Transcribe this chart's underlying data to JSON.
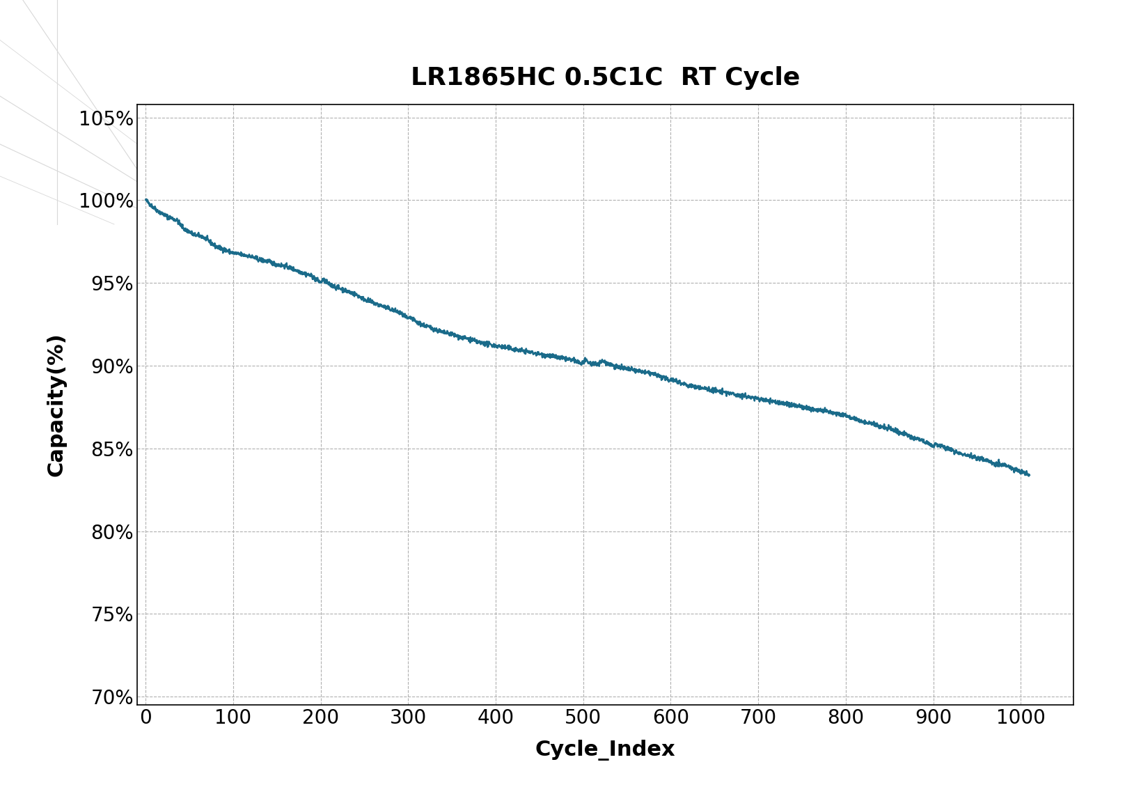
{
  "title": "LR1865HC 0.5C1C  RT Cycle",
  "xlabel": "Cycle_Index",
  "ylabel": "Capacity(%)",
  "line_color": "#1a6b8a",
  "line_width": 1.8,
  "xlim": [
    -10,
    1060
  ],
  "ylim": [
    0.695,
    1.058
  ],
  "xticks": [
    0,
    100,
    200,
    300,
    400,
    500,
    600,
    700,
    800,
    900,
    1000
  ],
  "yticks": [
    0.7,
    0.75,
    0.8,
    0.85,
    0.9,
    0.95,
    1.0,
    1.05
  ],
  "background_color": "#ffffff",
  "grid_color": "#b0b0b0",
  "title_fontsize": 26,
  "axis_label_fontsize": 22,
  "tick_fontsize": 20,
  "key_points": [
    [
      0,
      1.0
    ],
    [
      8,
      0.996
    ],
    [
      15,
      0.993
    ],
    [
      25,
      0.99
    ],
    [
      35,
      0.988
    ],
    [
      45,
      0.982
    ],
    [
      50,
      0.981
    ],
    [
      55,
      0.979
    ],
    [
      65,
      0.978
    ],
    [
      75,
      0.974
    ],
    [
      80,
      0.972
    ],
    [
      85,
      0.971
    ],
    [
      90,
      0.97
    ],
    [
      100,
      0.968
    ],
    [
      110,
      0.967
    ],
    [
      120,
      0.966
    ],
    [
      130,
      0.964
    ],
    [
      140,
      0.963
    ],
    [
      150,
      0.961
    ],
    [
      160,
      0.96
    ],
    [
      170,
      0.958
    ],
    [
      180,
      0.956
    ],
    [
      190,
      0.954
    ],
    [
      195,
      0.952
    ],
    [
      198,
      0.951
    ],
    [
      200,
      0.95
    ],
    [
      202,
      0.952
    ],
    [
      205,
      0.951
    ],
    [
      210,
      0.949
    ],
    [
      220,
      0.947
    ],
    [
      230,
      0.945
    ],
    [
      240,
      0.943
    ],
    [
      250,
      0.94
    ],
    [
      260,
      0.938
    ],
    [
      270,
      0.936
    ],
    [
      280,
      0.934
    ],
    [
      290,
      0.932
    ],
    [
      295,
      0.93
    ],
    [
      298,
      0.929
    ],
    [
      300,
      0.928
    ],
    [
      302,
      0.929
    ],
    [
      305,
      0.928
    ],
    [
      310,
      0.926
    ],
    [
      320,
      0.924
    ],
    [
      330,
      0.922
    ],
    [
      340,
      0.92
    ],
    [
      350,
      0.919
    ],
    [
      360,
      0.917
    ],
    [
      370,
      0.916
    ],
    [
      380,
      0.914
    ],
    [
      390,
      0.913
    ],
    [
      400,
      0.912
    ],
    [
      410,
      0.911
    ],
    [
      420,
      0.91
    ],
    [
      430,
      0.909
    ],
    [
      440,
      0.908
    ],
    [
      450,
      0.907
    ],
    [
      460,
      0.906
    ],
    [
      470,
      0.905
    ],
    [
      480,
      0.904
    ],
    [
      490,
      0.903
    ],
    [
      495,
      0.902
    ],
    [
      498,
      0.901
    ],
    [
      500,
      0.902
    ],
    [
      502,
      0.903
    ],
    [
      505,
      0.902
    ],
    [
      510,
      0.901
    ],
    [
      515,
      0.901
    ],
    [
      520,
      0.902
    ],
    [
      522,
      0.903
    ],
    [
      525,
      0.902
    ],
    [
      530,
      0.901
    ],
    [
      535,
      0.9
    ],
    [
      540,
      0.899
    ],
    [
      550,
      0.898
    ],
    [
      560,
      0.897
    ],
    [
      570,
      0.896
    ],
    [
      580,
      0.895
    ],
    [
      590,
      0.893
    ],
    [
      595,
      0.892
    ],
    [
      598,
      0.891
    ],
    [
      600,
      0.892
    ],
    [
      605,
      0.891
    ],
    [
      610,
      0.89
    ],
    [
      620,
      0.888
    ],
    [
      630,
      0.887
    ],
    [
      640,
      0.886
    ],
    [
      650,
      0.885
    ],
    [
      660,
      0.884
    ],
    [
      670,
      0.883
    ],
    [
      680,
      0.882
    ],
    [
      690,
      0.881
    ],
    [
      700,
      0.88
    ],
    [
      710,
      0.879
    ],
    [
      720,
      0.878
    ],
    [
      730,
      0.877
    ],
    [
      740,
      0.876
    ],
    [
      750,
      0.875
    ],
    [
      760,
      0.874
    ],
    [
      770,
      0.873
    ],
    [
      780,
      0.872
    ],
    [
      790,
      0.871
    ],
    [
      800,
      0.87
    ],
    [
      810,
      0.868
    ],
    [
      820,
      0.866
    ],
    [
      830,
      0.865
    ],
    [
      840,
      0.863
    ],
    [
      850,
      0.862
    ],
    [
      860,
      0.86
    ],
    [
      870,
      0.858
    ],
    [
      875,
      0.857
    ],
    [
      880,
      0.856
    ],
    [
      885,
      0.855
    ],
    [
      890,
      0.854
    ],
    [
      895,
      0.853
    ],
    [
      898,
      0.852
    ],
    [
      900,
      0.851
    ],
    [
      902,
      0.853
    ],
    [
      905,
      0.852
    ],
    [
      910,
      0.851
    ],
    [
      920,
      0.849
    ],
    [
      930,
      0.847
    ],
    [
      940,
      0.846
    ],
    [
      950,
      0.844
    ],
    [
      960,
      0.843
    ],
    [
      970,
      0.841
    ],
    [
      980,
      0.84
    ],
    [
      990,
      0.838
    ],
    [
      1000,
      0.836
    ],
    [
      1010,
      0.834
    ]
  ]
}
